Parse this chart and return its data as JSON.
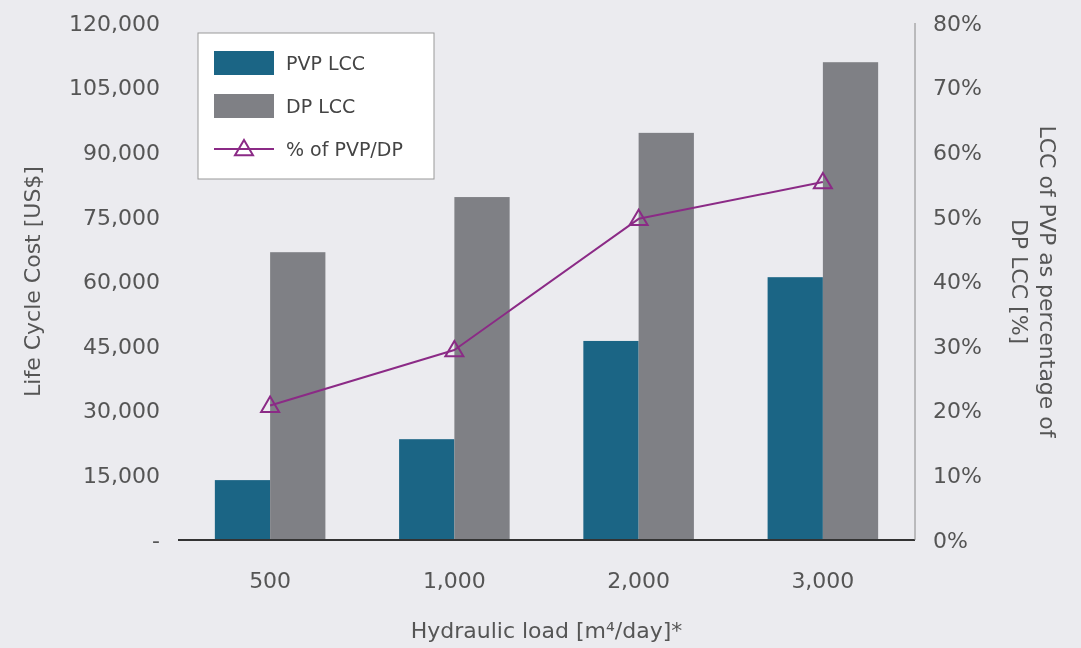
{
  "chart_data": {
    "type": "bar",
    "categories": [
      "500",
      "1,000",
      "2,000",
      "3,000"
    ],
    "xlabel": "Hydraulic load [m⁴/day]*",
    "ylabel": "Life Cycle Cost [US$]",
    "y2label": "LCC of PVP as percentage of DP LCC [%]",
    "series": [
      {
        "name": "PVP LCC",
        "color": "#1b6585",
        "values": [
          13900,
          23400,
          46200,
          61000
        ]
      },
      {
        "name": "DP LCC",
        "color": "#7f8085",
        "values": [
          66800,
          79600,
          94500,
          110900
        ]
      },
      {
        "name": "% of PVP/DP",
        "type": "line",
        "axis": "y2",
        "color": "#8b2a86",
        "marker": "triangle",
        "values": [
          20.8,
          29.4,
          49.7,
          55.4
        ]
      }
    ],
    "ylim": [
      0,
      120000
    ],
    "yticks": [
      {
        "value": 0,
        "label": "-"
      },
      {
        "value": 15000,
        "label": "15,000"
      },
      {
        "value": 30000,
        "label": "30,000"
      },
      {
        "value": 45000,
        "label": "45,000"
      },
      {
        "value": 60000,
        "label": "60,000"
      },
      {
        "value": 75000,
        "label": "75,000"
      },
      {
        "value": 90000,
        "label": "90,000"
      },
      {
        "value": 105000,
        "label": "105,000"
      },
      {
        "value": 120000,
        "label": "120,000"
      }
    ],
    "y2lim": [
      0,
      80
    ],
    "y2ticks": [
      {
        "value": 0,
        "label": "0%"
      },
      {
        "value": 10,
        "label": "10%"
      },
      {
        "value": 20,
        "label": "20%"
      },
      {
        "value": 30,
        "label": "30%"
      },
      {
        "value": 40,
        "label": "40%"
      },
      {
        "value": 50,
        "label": "50%"
      },
      {
        "value": 60,
        "label": "60%"
      },
      {
        "value": 70,
        "label": "70%"
      },
      {
        "value": 80,
        "label": "80%"
      }
    ],
    "legend": "top left",
    "grid": false
  }
}
